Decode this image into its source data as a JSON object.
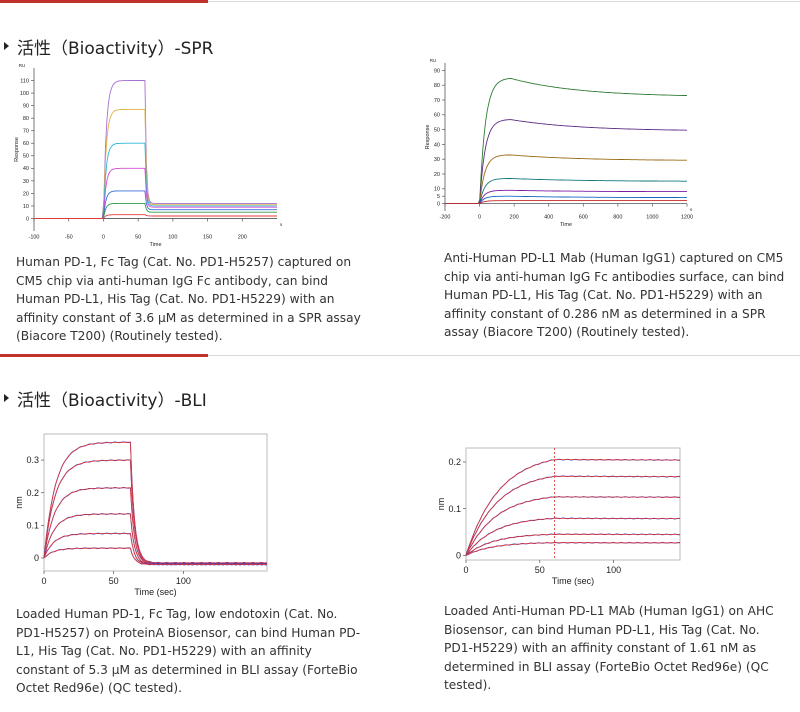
{
  "sections": [
    {
      "title": "活性（Bioactivity）-SPR"
    },
    {
      "title": "活性（Bioactivity）-BLI"
    }
  ],
  "captions": {
    "spr_left": "Human PD-1, Fc Tag (Cat. No. PD1-H5257) captured on CM5 chip via anti-human IgG Fc antibody, can bind Human PD-L1, His Tag (Cat. No. PD1-H5229) with an affinity constant of 3.6 μM as determined in a SPR assay (Biacore T200) (Routinely tested).",
    "spr_right": "Anti-Human PD-L1 Mab (Human IgG1) captured on CM5 chip via anti-human IgG Fc antibodies surface, can bind Human PD-L1, His Tag (Cat. No. PD1-H5229) with an affinity constant of 0.286 nM as determined in a SPR assay (Biacore T200) (Routinely tested).",
    "bli_left": "Loaded Human PD-1, Fc Tag, low endotoxin (Cat. No. PD1-H5257) on ProteinA Biosensor, can bind Human PD-L1, His Tag (Cat. No. PD1-H5229) with an affinity constant of 5.3 μM as determined in BLI assay (ForteBio Octet Red96e) (QC tested).",
    "bli_right": "Loaded Anti-Human PD-L1 MAb (Human IgG1) on AHC Biosensor, can bind Human PD-L1, His Tag (Cat. No. PD1-H5229) with an affinity constant of 1.61 nM as determined in BLI assay (ForteBio Octet Red96e) (QC tested)."
  },
  "colors": {
    "accent_red": "#c0312b"
  },
  "chart_data": [
    {
      "type": "line",
      "title": "",
      "xlabel": "Time",
      "ylabel": "Response",
      "yunit": "RU",
      "xunit": "s",
      "xlim": [
        -100,
        250
      ],
      "ylim": [
        -10,
        120
      ],
      "xticks": [
        -100,
        -50,
        0,
        50,
        100,
        150,
        200
      ],
      "yticks": [
        0,
        10,
        20,
        30,
        40,
        50,
        60,
        70,
        80,
        90,
        100,
        110
      ],
      "assoc_start": 0,
      "dissoc_start": 60,
      "series": [
        {
          "color": "#a66fd1",
          "plateau": 110,
          "end": 12
        },
        {
          "color": "#e3b243",
          "plateau": 87,
          "end": 11
        },
        {
          "color": "#2bb6d6",
          "plateau": 60,
          "end": 10
        },
        {
          "color": "#d84bd8",
          "plateau": 40,
          "end": 9
        },
        {
          "color": "#3a6fd8",
          "plateau": 22,
          "end": 7
        },
        {
          "color": "#2d9c4c",
          "plateau": 12,
          "end": 5
        },
        {
          "color": "#e03a3a",
          "plateau": 3,
          "end": 2
        }
      ]
    },
    {
      "type": "line",
      "title": "",
      "xlabel": "Time",
      "ylabel": "Response",
      "yunit": "RU",
      "xunit": "s",
      "xlim": [
        -200,
        1200
      ],
      "ylim": [
        -5,
        95
      ],
      "xticks": [
        -200,
        0,
        200,
        400,
        600,
        800,
        1000,
        1200
      ],
      "yticks": [
        0,
        5,
        10,
        20,
        30,
        40,
        50,
        60,
        70,
        80,
        90
      ],
      "assoc_start": 0,
      "dissoc_start": 180,
      "series": [
        {
          "color": "#2e7d32",
          "plateau": 85,
          "end": 72
        },
        {
          "color": "#5b2c83",
          "plateau": 57,
          "end": 49
        },
        {
          "color": "#9a6a12",
          "plateau": 33,
          "end": 29
        },
        {
          "color": "#12787a",
          "plateau": 17,
          "end": 15
        },
        {
          "color": "#7b1fa2",
          "plateau": 9,
          "end": 8
        },
        {
          "color": "#1565c0",
          "plateau": 5,
          "end": 4
        },
        {
          "color": "#c62828",
          "plateau": 2,
          "end": 2
        }
      ]
    },
    {
      "type": "line",
      "title": "",
      "xlabel": "Time (sec)",
      "ylabel": "nm",
      "xlim": [
        0,
        160
      ],
      "ylim": [
        -0.04,
        0.38
      ],
      "xticks": [
        0,
        50,
        100
      ],
      "yticks": [
        0,
        0.1,
        0.2,
        0.3
      ],
      "assoc_start": 0,
      "dissoc_start": 62,
      "series": [
        {
          "name": "",
          "color": "#1f3fd8",
          "plateau": 0.355,
          "end": -0.015
        },
        {
          "name": "",
          "color": "#1f3fd8",
          "plateau": 0.3,
          "end": -0.017
        },
        {
          "name": "",
          "color": "#1f3fd8",
          "plateau": 0.215,
          "end": -0.018
        },
        {
          "name": "",
          "color": "#1f3fd8",
          "plateau": 0.135,
          "end": -0.019
        },
        {
          "name": "",
          "color": "#1f3fd8",
          "plateau": 0.075,
          "end": -0.02
        },
        {
          "name": "",
          "color": "#1f3fd8",
          "plateau": 0.03,
          "end": -0.02
        }
      ]
    },
    {
      "type": "line",
      "title": "",
      "xlabel": "Time (sec)",
      "ylabel": "nm",
      "xlim": [
        0,
        145
      ],
      "ylim": [
        -0.01,
        0.23
      ],
      "xticks": [
        0,
        50,
        100
      ],
      "yticks": [
        0,
        0.1,
        0.2
      ],
      "assoc_start": 0,
      "dissoc_start": 60,
      "series": [
        {
          "color": "#1f3fd8",
          "plateau": 0.22,
          "end": 0.2
        },
        {
          "color": "#1f3fd8",
          "plateau": 0.18,
          "end": 0.165
        },
        {
          "color": "#1f3fd8",
          "plateau": 0.132,
          "end": 0.122
        },
        {
          "color": "#1f3fd8",
          "plateau": 0.083,
          "end": 0.076
        },
        {
          "color": "#1f3fd8",
          "plateau": 0.047,
          "end": 0.043
        },
        {
          "color": "#1f3fd8",
          "plateau": 0.028,
          "end": 0.026
        }
      ]
    }
  ]
}
